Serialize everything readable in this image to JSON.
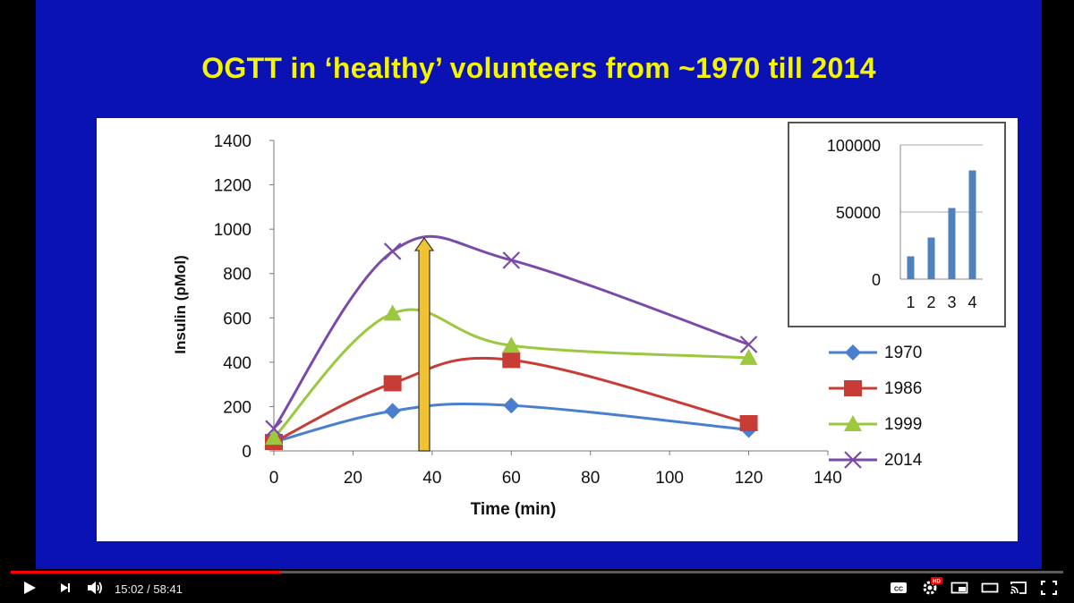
{
  "slide": {
    "title": "OGTT in ‘healthy’ volunteers from ~1970 till 2014"
  },
  "chart_data": [
    {
      "type": "line",
      "xlabel": "Time (min)",
      "ylabel": "Insulin (pMol)",
      "xlim": [
        0,
        140
      ],
      "ylim": [
        0,
        1400
      ],
      "xticks": [
        0,
        20,
        40,
        60,
        80,
        100,
        120,
        140
      ],
      "yticks": [
        0,
        200,
        400,
        600,
        800,
        1000,
        1200,
        1400
      ],
      "x": [
        0,
        30,
        60,
        120
      ],
      "series": [
        {
          "name": "1970",
          "values": [
            40,
            180,
            205,
            95
          ],
          "color": "#4a7fd0",
          "marker": "diamond"
        },
        {
          "name": "1986",
          "values": [
            40,
            305,
            410,
            125
          ],
          "color": "#c83c36",
          "marker": "square"
        },
        {
          "name": "1999",
          "values": [
            60,
            620,
            475,
            420
          ],
          "color": "#9bc83e",
          "marker": "triangle"
        },
        {
          "name": "2014",
          "values": [
            100,
            900,
            860,
            480
          ],
          "color": "#7a4aa8",
          "marker": "x"
        }
      ],
      "annotation": {
        "type": "vertical-arrow",
        "x": 38,
        "y_from": 0,
        "y_to": 960,
        "color": "#f1c232"
      },
      "legend_position": "right",
      "grid": false
    },
    {
      "type": "bar",
      "categories": [
        "1",
        "2",
        "3",
        "4"
      ],
      "values": [
        17000,
        31000,
        53000,
        81000
      ],
      "ylim": [
        0,
        100000
      ],
      "yticks": [
        0,
        50000,
        100000
      ],
      "color": "#4f81bd",
      "grid": true
    }
  ],
  "player": {
    "current_time": "15:02",
    "duration": "58:41",
    "time_display": "15:02 / 58:41",
    "progress": 0.256,
    "buffered": 0.27,
    "hd_badge": "HD"
  }
}
